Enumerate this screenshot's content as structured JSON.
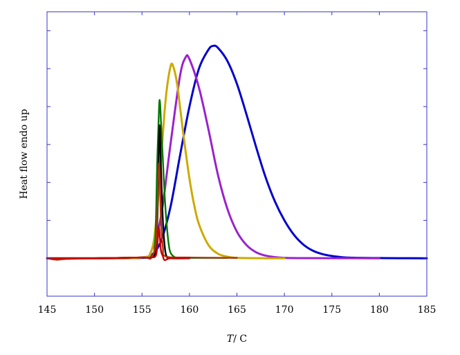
{
  "chart_data": {
    "type": "line",
    "xlabel_var": "T",
    "xlabel_unit": "/ C",
    "ylabel": "Heat flow endo up",
    "xlim": [
      145,
      185
    ],
    "ylim": [
      -1,
      6.5
    ],
    "xticks": [
      145,
      150,
      155,
      160,
      165,
      170,
      175,
      180,
      185
    ],
    "yticks_unlabeled": [
      -1,
      0,
      1,
      2,
      3,
      4,
      5,
      6,
      6.5
    ],
    "grid": false,
    "legend": "none",
    "frame_color": "#3333cc",
    "series": [
      {
        "color": "#0000cc",
        "x": [
          145,
          150,
          155,
          156,
          157,
          158,
          159,
          160,
          161,
          162,
          162.5,
          163,
          164,
          165,
          166,
          167,
          168,
          169,
          170,
          171,
          172,
          173,
          174,
          175,
          176,
          177,
          178,
          180,
          182,
          185
        ],
        "y": [
          0,
          0,
          0.01,
          0.08,
          0.45,
          1.35,
          2.7,
          4.0,
          5.0,
          5.5,
          5.6,
          5.55,
          5.2,
          4.6,
          3.8,
          2.95,
          2.15,
          1.5,
          1.0,
          0.62,
          0.36,
          0.2,
          0.11,
          0.06,
          0.03,
          0.015,
          0.01,
          0.005,
          0.002,
          0
        ]
      },
      {
        "color": "#9922cc",
        "x": [
          145,
          150,
          155,
          156,
          157,
          158,
          159,
          159.6,
          160,
          161,
          162,
          163,
          164,
          165,
          166,
          167,
          168,
          169,
          170,
          172,
          175,
          180
        ],
        "y": [
          0,
          0,
          0.02,
          0.2,
          1.1,
          3.0,
          4.8,
          5.3,
          5.25,
          4.5,
          3.4,
          2.2,
          1.3,
          0.7,
          0.35,
          0.16,
          0.07,
          0.03,
          0.01,
          0.003,
          0.001,
          0
        ]
      },
      {
        "color": "#ccaa00",
        "x": [
          145,
          150,
          155,
          156,
          156.5,
          157,
          157.5,
          158,
          158.3,
          158.7,
          159,
          159.5,
          160,
          160.5,
          161,
          162,
          163,
          164,
          165,
          168,
          170
        ],
        "y": [
          0,
          0,
          0.02,
          0.2,
          1.0,
          2.6,
          4.2,
          5.05,
          5.05,
          4.6,
          4.0,
          3.0,
          2.1,
          1.4,
          0.9,
          0.35,
          0.12,
          0.04,
          0.01,
          0,
          0
        ]
      },
      {
        "color": "#007700",
        "x": [
          145,
          150,
          155,
          156,
          156.4,
          156.6,
          156.8,
          156.9,
          157.0,
          157.2,
          157.4,
          157.6,
          157.8,
          158.0,
          158.5,
          159,
          160,
          164
        ],
        "y": [
          0,
          0,
          0.02,
          0.02,
          0.5,
          2.5,
          4.0,
          4.1,
          3.6,
          2.6,
          1.6,
          0.9,
          0.4,
          0.15,
          0.02,
          0.01,
          0.01,
          0.01
        ]
      },
      {
        "color": "#000000",
        "x": [
          145,
          150,
          155,
          156,
          156.5,
          156.7,
          156.85,
          157.0,
          157.2,
          157.4,
          157.6,
          158.0,
          160
        ],
        "y": [
          0,
          0,
          0.02,
          0.02,
          0.3,
          1.8,
          3.5,
          2.4,
          1.0,
          0.3,
          0.05,
          0,
          0
        ]
      },
      {
        "color": "#aa3311",
        "x": [
          145,
          146,
          147,
          150,
          155,
          156,
          156.5,
          156.7,
          156.8,
          156.9,
          157.0,
          157.2,
          157.5,
          160,
          165
        ],
        "y": [
          0,
          -0.04,
          -0.02,
          0,
          0.02,
          0.03,
          0.5,
          2.0,
          2.5,
          2.0,
          1.0,
          0.3,
          0.05,
          0.02,
          0.01
        ]
      },
      {
        "color": "#cc0000",
        "x": [
          145,
          150,
          155,
          156,
          156.5,
          156.7,
          156.8,
          156.9,
          157.0,
          157.2,
          157.4,
          158,
          160
        ],
        "y": [
          0,
          0,
          0.02,
          0.02,
          0.1,
          0.6,
          0.8,
          0.5,
          0.2,
          0.05,
          -0.05,
          0,
          0
        ]
      }
    ]
  }
}
